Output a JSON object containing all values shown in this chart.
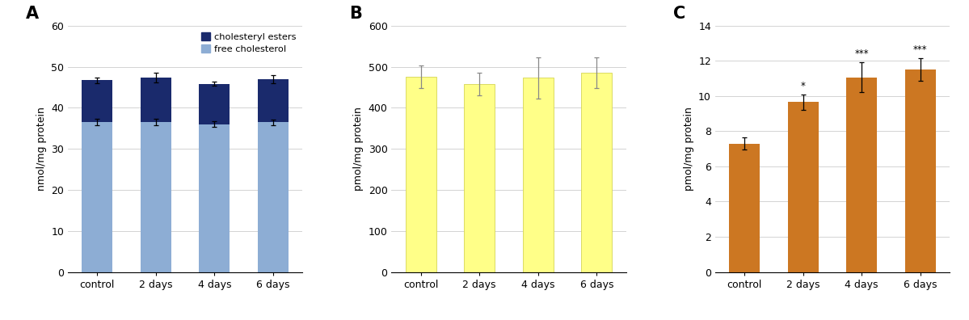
{
  "categories": [
    "control",
    "2 days",
    "4 days",
    "6 days"
  ],
  "A": {
    "panel_label": "A",
    "free_cholesterol": [
      36.5,
      36.5,
      36.0,
      36.5
    ],
    "cholesteryl_esters": [
      10.2,
      10.8,
      9.8,
      10.5
    ],
    "free_err": [
      0.8,
      0.8,
      0.7,
      0.7
    ],
    "total_err": [
      0.7,
      1.2,
      0.5,
      1.0
    ],
    "ylabel": "nmol/mg protein",
    "ylim": [
      0,
      60
    ],
    "yticks": [
      0,
      10,
      20,
      30,
      40,
      50,
      60
    ],
    "color_free": "#8dadd4",
    "color_esters": "#1a2a6c"
  },
  "B": {
    "panel_label": "B",
    "values": [
      475,
      458,
      473,
      485
    ],
    "errors": [
      28,
      28,
      50,
      37
    ],
    "ylabel": "pmol/mg protein",
    "ylim": [
      0,
      600
    ],
    "yticks": [
      0,
      100,
      200,
      300,
      400,
      500,
      600
    ],
    "color": "#ffff88",
    "edge_color": "#d4d455"
  },
  "C": {
    "panel_label": "C",
    "values": [
      7.3,
      9.65,
      11.05,
      11.5
    ],
    "errors": [
      0.35,
      0.45,
      0.85,
      0.65
    ],
    "ylabel": "pmol/mg protein",
    "ylim": [
      0,
      14
    ],
    "yticks": [
      0,
      2,
      4,
      6,
      8,
      10,
      12,
      14
    ],
    "color": "#cc7722",
    "annotations": [
      "",
      "*",
      "***",
      "***"
    ]
  },
  "fig_width": 11.99,
  "fig_height": 3.96,
  "dpi": 100,
  "bar_width": 0.52,
  "grid_color": "#cccccc",
  "grid_lw": 0.6,
  "tick_fontsize": 9,
  "label_fontsize": 9,
  "panel_label_fontsize": 15
}
